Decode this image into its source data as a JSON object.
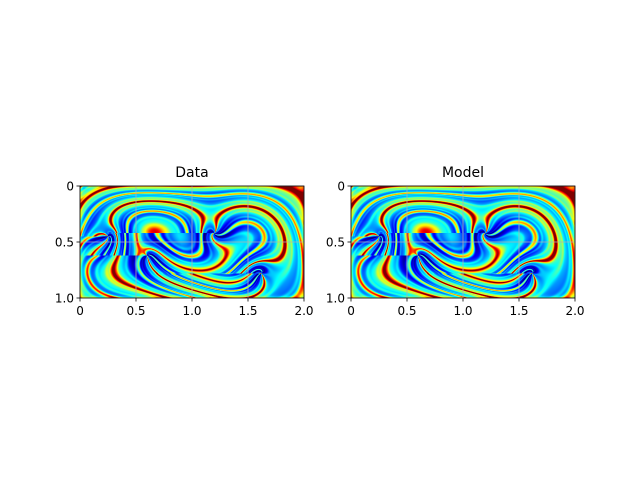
{
  "chart_data": [
    {
      "type": "heatmap",
      "title": "Data",
      "xlim": [
        0,
        2.0
      ],
      "ylim": [
        1.0,
        0
      ],
      "y_inverted": true,
      "grid": true,
      "colormap": "jet",
      "x_ticks": [
        0,
        0.5,
        1.0,
        1.5,
        2.0
      ],
      "x_tick_labels": [
        "0",
        "0.5",
        "1.0",
        "1.5",
        "2.0"
      ],
      "y_ticks": [
        0,
        0.5,
        1.0
      ],
      "y_tick_labels": [
        "0",
        "0.5",
        "1.0"
      ],
      "field": "double-gyre tracer field with swirling red/yellow filaments on a blue-cyan background; vortex cores near (0.25, 0.45), (1.2, 0.4) and (1.6, 0.8)"
    },
    {
      "type": "heatmap",
      "title": "Model",
      "xlim": [
        0,
        2.0
      ],
      "ylim": [
        1.0,
        0
      ],
      "y_inverted": true,
      "grid": true,
      "colormap": "jet",
      "x_ticks": [
        0,
        0.5,
        1.0,
        1.5,
        2.0
      ],
      "x_tick_labels": [
        "0",
        "0.5",
        "1.0",
        "1.5",
        "2.0"
      ],
      "y_ticks": [
        0,
        0.5,
        1.0
      ],
      "y_tick_labels": [
        "0",
        "0.5",
        "1.0"
      ],
      "field": "double-gyre tracer field with swirling red/yellow filaments on a blue-cyan background; vortex cores near (0.25, 0.45), (1.2, 0.4) and (1.6, 0.8)"
    }
  ],
  "colors": {
    "axis": "#000000",
    "grid": "#b0b0b0",
    "jet_low": "#00007f",
    "jet_high": "#7f0000"
  }
}
